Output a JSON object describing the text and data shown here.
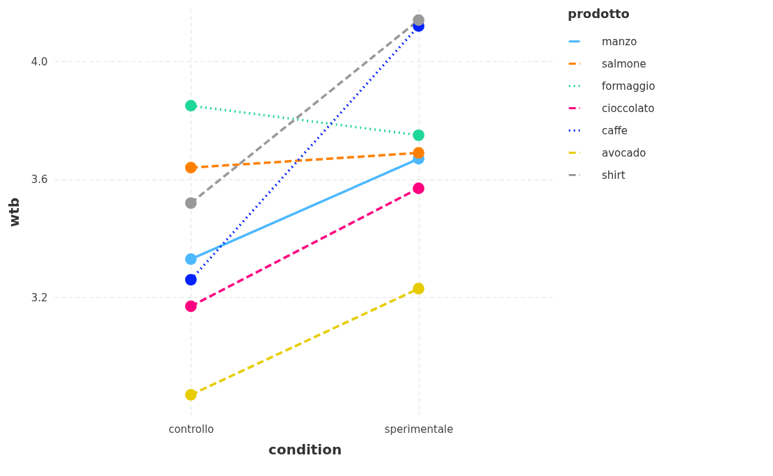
{
  "chart_data": {
    "type": "line",
    "xlabel": "condition",
    "ylabel": "wtb",
    "legend_title": "prodotto",
    "categories": [
      "controllo",
      "sperimentale"
    ],
    "series": [
      {
        "name": "manzo",
        "color": "#4db8ff",
        "line_style": "solid",
        "values": [
          3.33,
          3.67
        ]
      },
      {
        "name": "salmone",
        "color": "#ff8000",
        "line_style": "dashed",
        "values": [
          3.64,
          3.69
        ]
      },
      {
        "name": "formaggio",
        "color": "#1fd79a",
        "line_style": "dotted",
        "values": [
          3.85,
          3.75
        ]
      },
      {
        "name": "cioccolato",
        "color": "#ff0080",
        "line_style": "dashed",
        "values": [
          3.17,
          3.57
        ]
      },
      {
        "name": "caffe",
        "color": "#0022ff",
        "line_style": "dotted",
        "values": [
          3.26,
          4.12
        ]
      },
      {
        "name": "avocado",
        "color": "#e6cc00",
        "line_style": "dashed",
        "values": [
          2.87,
          3.23
        ]
      },
      {
        "name": "shirt",
        "color": "#999999",
        "line_style": "dashed",
        "values": [
          3.52,
          4.14
        ]
      }
    ],
    "ylim": [
      2.8,
      4.18
    ],
    "yticks": [
      3.2,
      3.6,
      {
        "value": 4,
        "label": "4.0"
      }
    ],
    "grid": true,
    "legend": "right",
    "marker": "circle"
  }
}
